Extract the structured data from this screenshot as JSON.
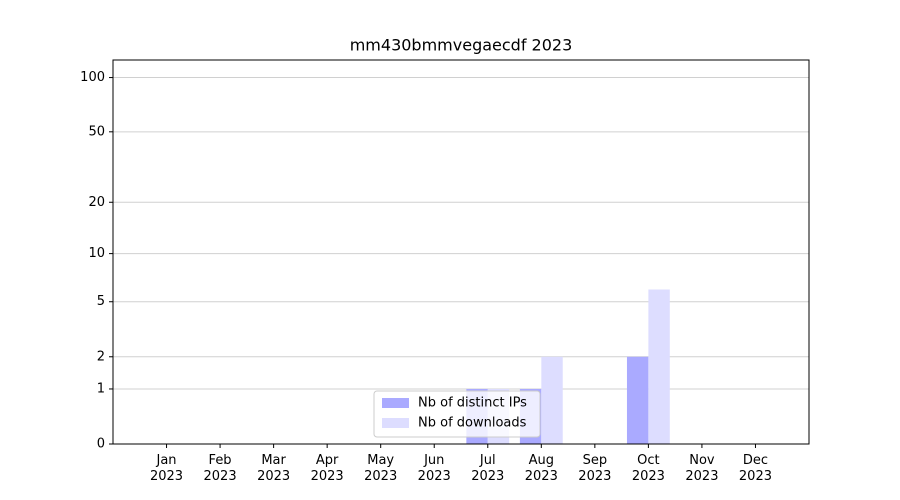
{
  "chart_data": {
    "type": "bar",
    "title": "mm430bmmvegaecdf 2023",
    "categories": [
      "Jan 2023",
      "Feb 2023",
      "Mar 2023",
      "Apr 2023",
      "May 2023",
      "Jun 2023",
      "Jul 2023",
      "Aug 2023",
      "Sep 2023",
      "Oct 2023",
      "Nov 2023",
      "Dec 2023"
    ],
    "series": [
      {
        "name": "Nb of distinct IPs",
        "color": "#aaaaff",
        "values": [
          0,
          0,
          0,
          0,
          0,
          0,
          1,
          1,
          0,
          2,
          0,
          0
        ]
      },
      {
        "name": "Nb of downloads",
        "color": "#ddddff",
        "values": [
          0,
          0,
          0,
          0,
          0,
          0,
          1,
          2,
          0,
          6,
          0,
          0
        ]
      }
    ],
    "yscale": "log1p",
    "ylim": [
      0,
      125
    ],
    "yticks": [
      0,
      1,
      2,
      5,
      10,
      20,
      50,
      100
    ],
    "grid": true,
    "legend": "lower center"
  }
}
